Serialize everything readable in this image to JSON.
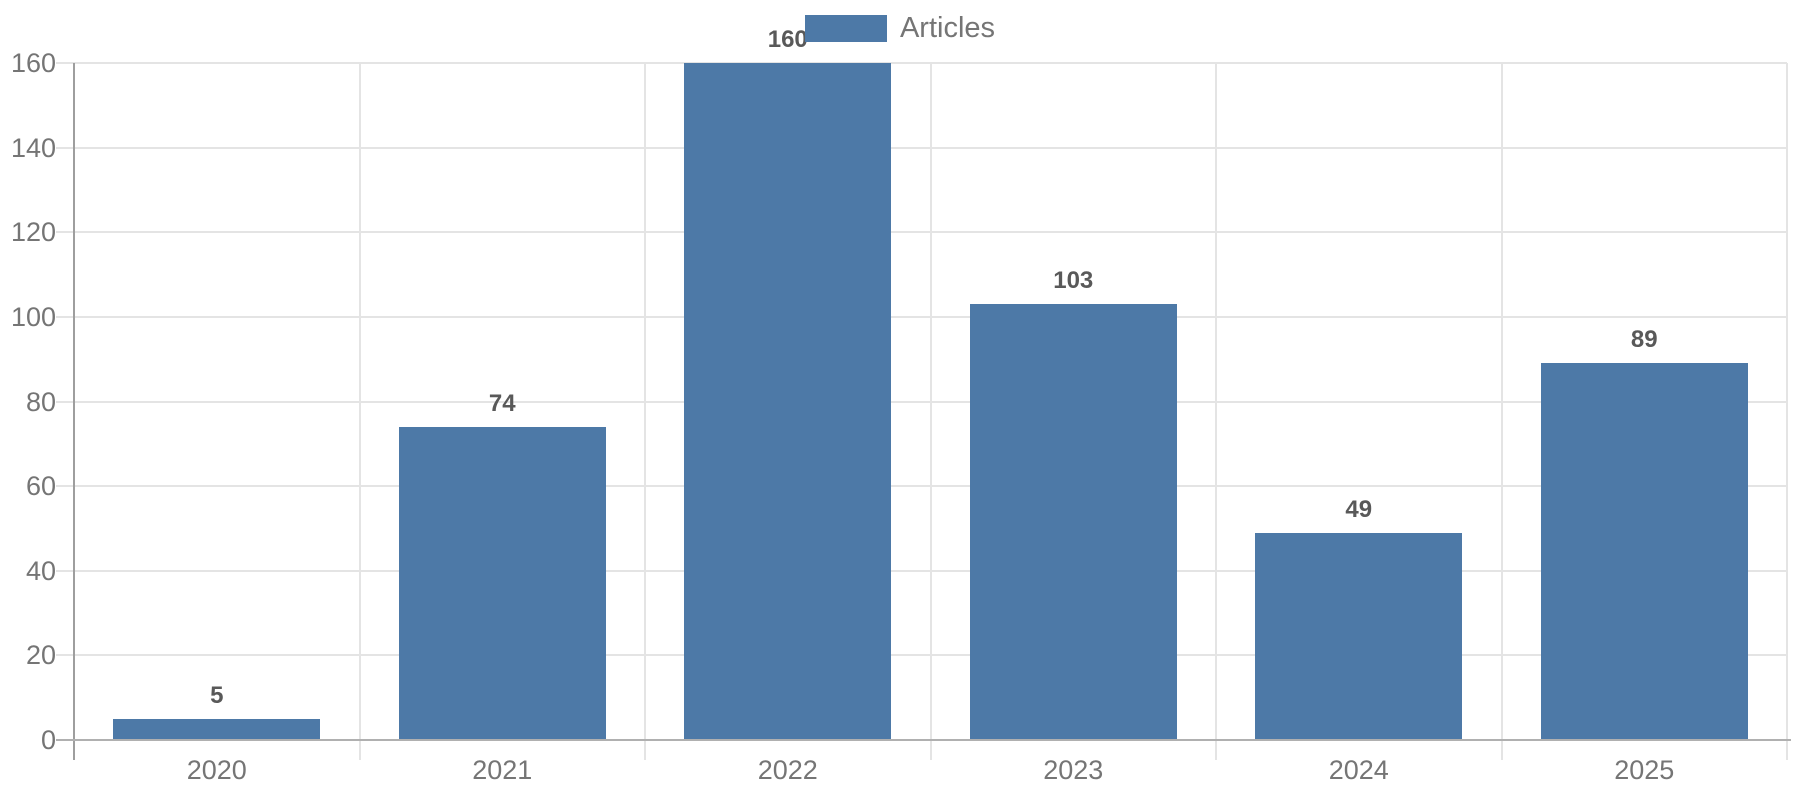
{
  "chart_data": {
    "type": "bar",
    "title": "",
    "categories": [
      "2020",
      "2021",
      "2022",
      "2023",
      "2024",
      "2025"
    ],
    "values": [
      5,
      74,
      160,
      103,
      49,
      89
    ],
    "series_name": "Articles",
    "xlabel": "",
    "ylabel": "",
    "ylim": [
      0,
      160
    ],
    "ytick_step": 20,
    "yticks": [
      0,
      20,
      40,
      60,
      80,
      100,
      120,
      140,
      160
    ],
    "legend_position": "top-center",
    "grid": true,
    "value_labels_shown": true,
    "colors": {
      "bar": "#4d79a7",
      "value_label": "#595959",
      "axis_text": "#757575",
      "gridline": "#e4e4e4",
      "axis_line": "#9e9e9e",
      "baseline": "#b0b0b0",
      "background": "#ffffff"
    }
  }
}
